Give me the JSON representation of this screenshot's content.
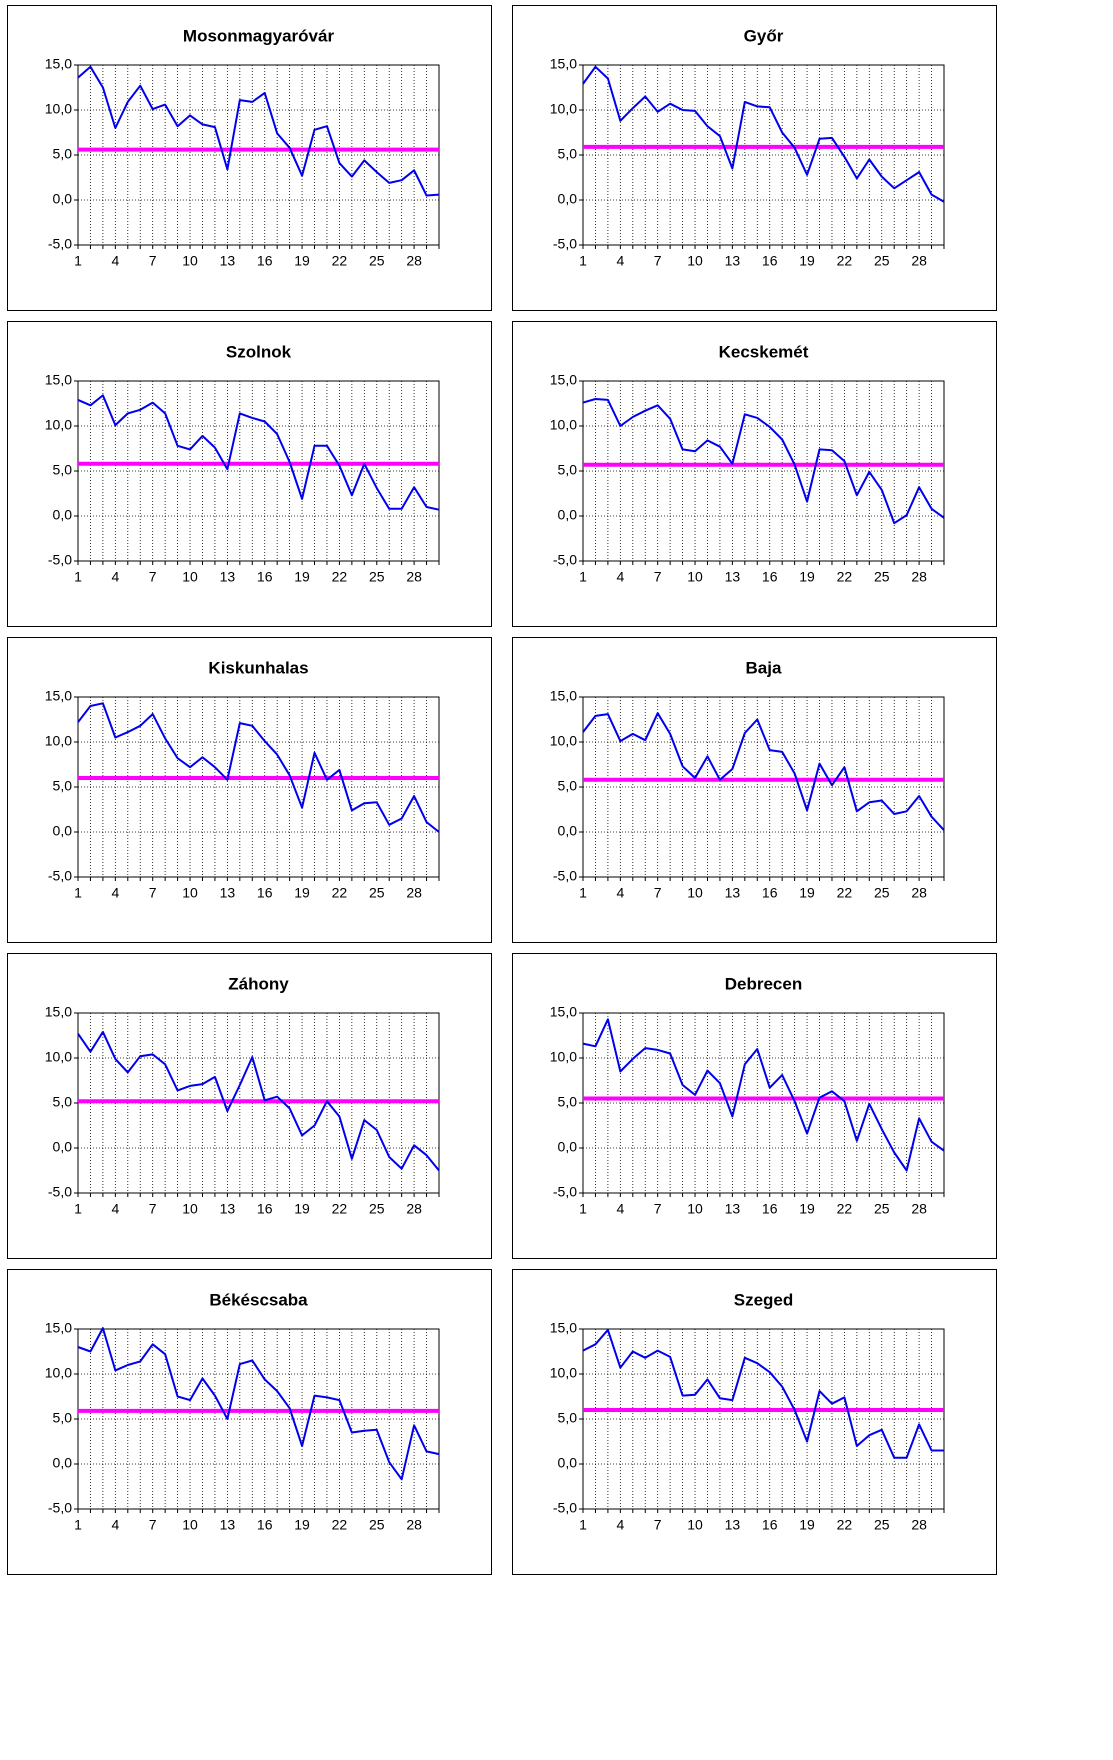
{
  "chart_data": [
    {
      "type": "line",
      "title": "Mosonmagyaróvár",
      "x": [
        1,
        2,
        3,
        4,
        5,
        6,
        7,
        8,
        9,
        10,
        11,
        12,
        13,
        14,
        15,
        16,
        17,
        18,
        19,
        20,
        21,
        22,
        23,
        24,
        25,
        26,
        27,
        28,
        29,
        30
      ],
      "series": [
        {
          "color": "#0000ee",
          "values": [
            13.6,
            14.8,
            12.5,
            8.0,
            10.9,
            12.7,
            10.1,
            10.6,
            8.2,
            9.4,
            8.4,
            8.1,
            3.4,
            11.1,
            10.9,
            11.9,
            7.4,
            5.8,
            2.7,
            7.8,
            8.2,
            4.1,
            2.6,
            4.4,
            3.1,
            1.9,
            2.2,
            3.3,
            0.5,
            0.6
          ]
        }
      ],
      "reference_line": {
        "value": 5.6,
        "color": "#ff00ff"
      },
      "xlim": [
        1,
        30
      ],
      "xticks": [
        1,
        4,
        7,
        10,
        13,
        16,
        19,
        22,
        25,
        28
      ],
      "ylim": [
        -5,
        15
      ],
      "yticks": [
        {
          "value": -5,
          "label": "-5,0"
        },
        {
          "value": 0,
          "label": "0,0"
        },
        {
          "value": 5,
          "label": "5,0"
        },
        {
          "value": 10,
          "label": "10,0"
        },
        {
          "value": 15,
          "label": "15,0"
        }
      ],
      "grid": true
    },
    {
      "type": "line",
      "title": "Győr",
      "x": [
        1,
        2,
        3,
        4,
        5,
        6,
        7,
        8,
        9,
        10,
        11,
        12,
        13,
        14,
        15,
        16,
        17,
        18,
        19,
        20,
        21,
        22,
        23,
        24,
        25,
        26,
        27,
        28,
        29,
        30
      ],
      "series": [
        {
          "color": "#0000ee",
          "values": [
            12.9,
            14.8,
            13.5,
            8.8,
            10.2,
            11.5,
            9.8,
            10.7,
            10.0,
            9.9,
            8.2,
            7.1,
            3.5,
            10.9,
            10.4,
            10.3,
            7.5,
            5.8,
            2.8,
            6.8,
            6.9,
            4.8,
            2.4,
            4.5,
            2.6,
            1.3,
            2.2,
            3.1,
            0.6,
            -0.2
          ]
        }
      ],
      "reference_line": {
        "value": 5.9,
        "color": "#ff00ff"
      },
      "xlim": [
        1,
        30
      ],
      "xticks": [
        1,
        4,
        7,
        10,
        13,
        16,
        19,
        22,
        25,
        28
      ],
      "ylim": [
        -5,
        15
      ],
      "yticks": [
        {
          "value": -5,
          "label": "-5,0"
        },
        {
          "value": 0,
          "label": "0,0"
        },
        {
          "value": 5,
          "label": "5,0"
        },
        {
          "value": 10,
          "label": "10,0"
        },
        {
          "value": 15,
          "label": "15,0"
        }
      ],
      "grid": true
    },
    {
      "type": "line",
      "title": "Szolnok",
      "x": [
        1,
        2,
        3,
        4,
        5,
        6,
        7,
        8,
        9,
        10,
        11,
        12,
        13,
        14,
        15,
        16,
        17,
        18,
        19,
        20,
        21,
        22,
        23,
        24,
        25,
        26,
        27,
        28,
        29,
        30
      ],
      "series": [
        {
          "color": "#0000ee",
          "values": [
            12.9,
            12.3,
            13.4,
            10.1,
            11.4,
            11.8,
            12.6,
            11.4,
            7.8,
            7.4,
            8.9,
            7.6,
            5.2,
            11.4,
            10.9,
            10.5,
            9.1,
            6.0,
            1.9,
            7.8,
            7.8,
            5.6,
            2.3,
            5.8,
            3.1,
            0.8,
            0.8,
            3.2,
            1.0,
            0.7
          ]
        }
      ],
      "reference_line": {
        "value": 5.8,
        "color": "#ff00ff"
      },
      "xlim": [
        1,
        30
      ],
      "xticks": [
        1,
        4,
        7,
        10,
        13,
        16,
        19,
        22,
        25,
        28
      ],
      "ylim": [
        -5,
        15
      ],
      "yticks": [
        {
          "value": -5,
          "label": "-5,0"
        },
        {
          "value": 0,
          "label": "0,0"
        },
        {
          "value": 5,
          "label": "5,0"
        },
        {
          "value": 10,
          "label": "10,0"
        },
        {
          "value": 15,
          "label": "15,0"
        }
      ],
      "grid": true
    },
    {
      "type": "line",
      "title": "Kecskemét",
      "x": [
        1,
        2,
        3,
        4,
        5,
        6,
        7,
        8,
        9,
        10,
        11,
        12,
        13,
        14,
        15,
        16,
        17,
        18,
        19,
        20,
        21,
        22,
        23,
        24,
        25,
        26,
        27,
        28,
        29,
        30
      ],
      "series": [
        {
          "color": "#0000ee",
          "values": [
            12.6,
            13.0,
            12.9,
            10.0,
            11.0,
            11.7,
            12.3,
            10.8,
            7.4,
            7.2,
            8.4,
            7.7,
            5.8,
            11.3,
            10.9,
            9.9,
            8.5,
            5.7,
            1.6,
            7.4,
            7.3,
            6.1,
            2.3,
            4.9,
            2.9,
            -0.8,
            0.1,
            3.2,
            0.8,
            -0.2
          ]
        }
      ],
      "reference_line": {
        "value": 5.7,
        "color": "#ff00ff"
      },
      "xlim": [
        1,
        30
      ],
      "xticks": [
        1,
        4,
        7,
        10,
        13,
        16,
        19,
        22,
        25,
        28
      ],
      "ylim": [
        -5,
        15
      ],
      "yticks": [
        {
          "value": -5,
          "label": "-5,0"
        },
        {
          "value": 0,
          "label": "0,0"
        },
        {
          "value": 5,
          "label": "5,0"
        },
        {
          "value": 10,
          "label": "10,0"
        },
        {
          "value": 15,
          "label": "15,0"
        }
      ],
      "grid": true
    },
    {
      "type": "line",
      "title": "Kiskunhalas",
      "x": [
        1,
        2,
        3,
        4,
        5,
        6,
        7,
        8,
        9,
        10,
        11,
        12,
        13,
        14,
        15,
        16,
        17,
        18,
        19,
        20,
        21,
        22,
        23,
        24,
        25,
        26,
        27,
        28,
        29,
        30
      ],
      "series": [
        {
          "color": "#0000ee",
          "values": [
            12.2,
            14.0,
            14.3,
            10.5,
            11.1,
            11.8,
            13.1,
            10.4,
            8.2,
            7.2,
            8.3,
            7.2,
            5.8,
            12.1,
            11.8,
            10.1,
            8.6,
            6.3,
            2.7,
            8.8,
            5.8,
            6.9,
            2.4,
            3.2,
            3.3,
            0.8,
            1.5,
            4.0,
            1.1,
            0.0
          ]
        }
      ],
      "reference_line": {
        "value": 6.0,
        "color": "#ff00ff"
      },
      "xlim": [
        1,
        30
      ],
      "xticks": [
        1,
        4,
        7,
        10,
        13,
        16,
        19,
        22,
        25,
        28
      ],
      "ylim": [
        -5,
        15
      ],
      "yticks": [
        {
          "value": -5,
          "label": "-5,0"
        },
        {
          "value": 0,
          "label": "0,0"
        },
        {
          "value": 5,
          "label": "5,0"
        },
        {
          "value": 10,
          "label": "10,0"
        },
        {
          "value": 15,
          "label": "15,0"
        }
      ],
      "grid": true
    },
    {
      "type": "line",
      "title": "Baja",
      "x": [
        1,
        2,
        3,
        4,
        5,
        6,
        7,
        8,
        9,
        10,
        11,
        12,
        13,
        14,
        15,
        16,
        17,
        18,
        19,
        20,
        21,
        22,
        23,
        24,
        25,
        26,
        27,
        28,
        29,
        30
      ],
      "series": [
        {
          "color": "#0000ee",
          "values": [
            11.1,
            12.9,
            13.1,
            10.1,
            10.9,
            10.2,
            13.2,
            10.9,
            7.3,
            6.0,
            8.4,
            5.8,
            7.0,
            11.0,
            12.5,
            9.1,
            8.9,
            6.5,
            2.4,
            7.6,
            5.2,
            7.2,
            2.3,
            3.3,
            3.5,
            2.0,
            2.3,
            4.0,
            1.7,
            0.2
          ]
        }
      ],
      "reference_line": {
        "value": 5.8,
        "color": "#ff00ff"
      },
      "xlim": [
        1,
        30
      ],
      "xticks": [
        1,
        4,
        7,
        10,
        13,
        16,
        19,
        22,
        25,
        28
      ],
      "ylim": [
        -5,
        15
      ],
      "yticks": [
        {
          "value": -5,
          "label": "-5,0"
        },
        {
          "value": 0,
          "label": "0,0"
        },
        {
          "value": 5,
          "label": "5,0"
        },
        {
          "value": 10,
          "label": "10,0"
        },
        {
          "value": 15,
          "label": "15,0"
        }
      ],
      "grid": true
    },
    {
      "type": "line",
      "title": "Záhony",
      "x": [
        1,
        2,
        3,
        4,
        5,
        6,
        7,
        8,
        9,
        10,
        11,
        12,
        13,
        14,
        15,
        16,
        17,
        18,
        19,
        20,
        21,
        22,
        23,
        24,
        25,
        26,
        27,
        28,
        29,
        30
      ],
      "series": [
        {
          "color": "#0000ee",
          "values": [
            12.7,
            10.7,
            12.9,
            9.9,
            8.4,
            10.2,
            10.4,
            9.3,
            6.4,
            6.9,
            7.1,
            7.9,
            4.1,
            7.0,
            10.1,
            5.3,
            5.7,
            4.4,
            1.4,
            2.5,
            5.2,
            3.5,
            -1.2,
            3.1,
            2.0,
            -1.0,
            -2.3,
            0.3,
            -0.8,
            -2.5
          ]
        }
      ],
      "reference_line": {
        "value": 5.2,
        "color": "#ff00ff"
      },
      "xlim": [
        1,
        30
      ],
      "xticks": [
        1,
        4,
        7,
        10,
        13,
        16,
        19,
        22,
        25,
        28
      ],
      "ylim": [
        -5,
        15
      ],
      "yticks": [
        {
          "value": -5,
          "label": "-5,0"
        },
        {
          "value": 0,
          "label": "0,0"
        },
        {
          "value": 5,
          "label": "5,0"
        },
        {
          "value": 10,
          "label": "10,0"
        },
        {
          "value": 15,
          "label": "15,0"
        }
      ],
      "grid": true
    },
    {
      "type": "line",
      "title": "Debrecen",
      "x": [
        1,
        2,
        3,
        4,
        5,
        6,
        7,
        8,
        9,
        10,
        11,
        12,
        13,
        14,
        15,
        16,
        17,
        18,
        19,
        20,
        21,
        22,
        23,
        24,
        25,
        26,
        27,
        28,
        29,
        30
      ],
      "series": [
        {
          "color": "#0000ee",
          "values": [
            11.6,
            11.3,
            14.3,
            8.5,
            9.9,
            11.1,
            10.9,
            10.5,
            7.0,
            5.9,
            8.6,
            7.2,
            3.5,
            9.3,
            11.0,
            6.7,
            8.1,
            5.2,
            1.6,
            5.6,
            6.3,
            5.2,
            0.8,
            4.9,
            2.1,
            -0.5,
            -2.5,
            3.3,
            0.7,
            -0.3
          ]
        }
      ],
      "reference_line": {
        "value": 5.5,
        "color": "#ff00ff"
      },
      "xlim": [
        1,
        30
      ],
      "xticks": [
        1,
        4,
        7,
        10,
        13,
        16,
        19,
        22,
        25,
        28
      ],
      "ylim": [
        -5,
        15
      ],
      "yticks": [
        {
          "value": -5,
          "label": "-5,0"
        },
        {
          "value": 0,
          "label": "0,0"
        },
        {
          "value": 5,
          "label": "5,0"
        },
        {
          "value": 10,
          "label": "10,0"
        },
        {
          "value": 15,
          "label": "15,0"
        }
      ],
      "grid": true
    },
    {
      "type": "line",
      "title": "Békéscsaba",
      "x": [
        1,
        2,
        3,
        4,
        5,
        6,
        7,
        8,
        9,
        10,
        11,
        12,
        13,
        14,
        15,
        16,
        17,
        18,
        19,
        20,
        21,
        22,
        23,
        24,
        25,
        26,
        27,
        28,
        29,
        30
      ],
      "series": [
        {
          "color": "#0000ee",
          "values": [
            13.0,
            12.5,
            15.1,
            10.4,
            11.0,
            11.4,
            13.3,
            12.2,
            7.5,
            7.1,
            9.5,
            7.6,
            5.0,
            11.1,
            11.5,
            9.4,
            8.1,
            6.2,
            2.0,
            7.6,
            7.4,
            7.1,
            3.5,
            3.7,
            3.8,
            0.2,
            -1.7,
            4.3,
            1.4,
            1.1
          ]
        }
      ],
      "reference_line": {
        "value": 5.9,
        "color": "#ff00ff"
      },
      "xlim": [
        1,
        30
      ],
      "xticks": [
        1,
        4,
        7,
        10,
        13,
        16,
        19,
        22,
        25,
        28
      ],
      "ylim": [
        -5,
        15
      ],
      "yticks": [
        {
          "value": -5,
          "label": "-5,0"
        },
        {
          "value": 0,
          "label": "0,0"
        },
        {
          "value": 5,
          "label": "5,0"
        },
        {
          "value": 10,
          "label": "10,0"
        },
        {
          "value": 15,
          "label": "15,0"
        }
      ],
      "grid": true
    },
    {
      "type": "line",
      "title": "Szeged",
      "x": [
        1,
        2,
        3,
        4,
        5,
        6,
        7,
        8,
        9,
        10,
        11,
        12,
        13,
        14,
        15,
        16,
        17,
        18,
        19,
        20,
        21,
        22,
        23,
        24,
        25,
        26,
        27,
        28,
        29,
        30
      ],
      "series": [
        {
          "color": "#0000ee",
          "values": [
            12.6,
            13.3,
            14.9,
            10.7,
            12.5,
            11.8,
            12.6,
            11.9,
            7.6,
            7.7,
            9.4,
            7.3,
            7.1,
            11.8,
            11.2,
            10.2,
            8.6,
            6.0,
            2.5,
            8.1,
            6.7,
            7.4,
            2.0,
            3.2,
            3.8,
            0.7,
            0.7,
            4.4,
            1.5,
            1.5
          ]
        }
      ],
      "reference_line": {
        "value": 6.0,
        "color": "#ff00ff"
      },
      "xlim": [
        1,
        30
      ],
      "xticks": [
        1,
        4,
        7,
        10,
        13,
        16,
        19,
        22,
        25,
        28
      ],
      "ylim": [
        -5,
        15
      ],
      "yticks": [
        {
          "value": -5,
          "label": "-5,0"
        },
        {
          "value": 0,
          "label": "0,0"
        },
        {
          "value": 5,
          "label": "5,0"
        },
        {
          "value": 10,
          "label": "10,0"
        },
        {
          "value": 15,
          "label": "15,0"
        }
      ],
      "grid": true
    }
  ]
}
